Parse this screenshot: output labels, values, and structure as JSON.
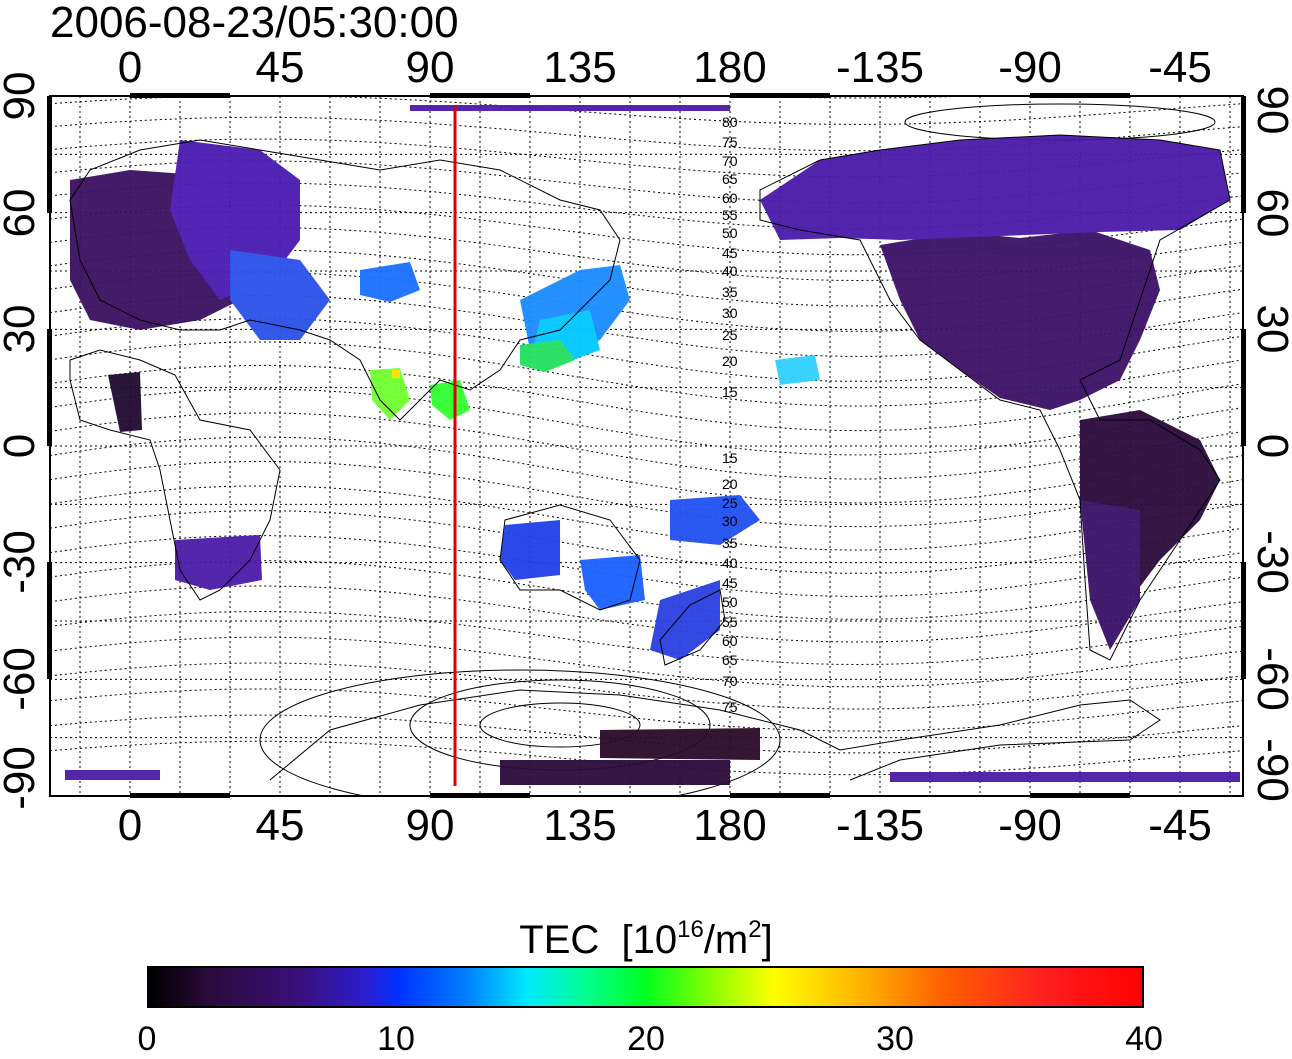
{
  "title": "2006-08-23/05:30:00",
  "axes": {
    "lon_ticks": [
      "0",
      "45",
      "90",
      "135",
      "180",
      "-135",
      "-90",
      "-45"
    ],
    "lat_ticks": [
      "90",
      "60",
      "30",
      "0",
      "-30",
      "-60",
      "-90"
    ]
  },
  "contour_labels": [
    "80",
    "75",
    "70",
    "65",
    "60",
    "55",
    "50",
    "45",
    "40",
    "35",
    "30",
    "25",
    "20",
    "15",
    "15",
    "20",
    "25",
    "30",
    "35",
    "40",
    "45",
    "50",
    "55",
    "60",
    "65",
    "70",
    "75"
  ],
  "marker_line": {
    "longitude": 97.5,
    "color": "#e00000"
  },
  "colorbar": {
    "title": "TEC",
    "unit_base": "[10",
    "unit_exp": "16",
    "unit_mid": "/m",
    "unit_exp2": "2",
    "unit_end": "]",
    "ticks": [
      "0",
      "10",
      "20",
      "30",
      "40"
    ],
    "range": [
      0,
      40
    ]
  },
  "colors": {
    "low": "#2a0a3a",
    "mid_low": "#4a1aa8",
    "blue": "#2060ff",
    "cyan": "#00d0ff",
    "green": "#20ff40",
    "yellow": "#ffff00",
    "red": "#ff0000"
  }
}
